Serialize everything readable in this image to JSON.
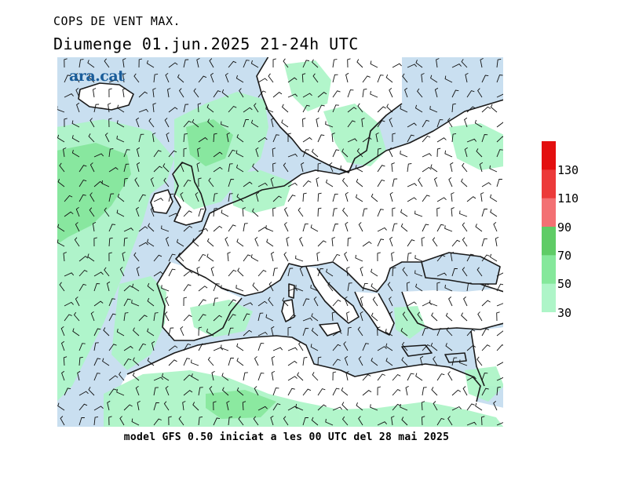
{
  "title_line1": "COPS DE VENT MAX.",
  "title_line2": "Diumenge  01.jun.2025 21-24h UTC",
  "footer": "model GFS 0.50 iniciat a les 00 UTC del 28 mai 2025",
  "logo_text": "ara.cat",
  "colors": {
    "sea": "#c9dff0",
    "land": "#ffffff",
    "coast": "#1a1a1a",
    "barb": "#111111",
    "logo": "#1a5d9a"
  },
  "legend": {
    "unit_values": [
      "30",
      "50",
      "70",
      "90",
      "110",
      "130"
    ],
    "bands": [
      {
        "from": 30,
        "to": 50,
        "color": "#aef5c8"
      },
      {
        "from": 50,
        "to": 70,
        "color": "#85e89b"
      },
      {
        "from": 70,
        "to": 90,
        "color": "#5fcc66"
      },
      {
        "from": 90,
        "to": 110,
        "color": "#f37073"
      },
      {
        "from": 110,
        "to": 130,
        "color": "#ec3a3a"
      },
      {
        "from": 130,
        "to": 150,
        "color": "#e30f0f"
      }
    ]
  }
}
